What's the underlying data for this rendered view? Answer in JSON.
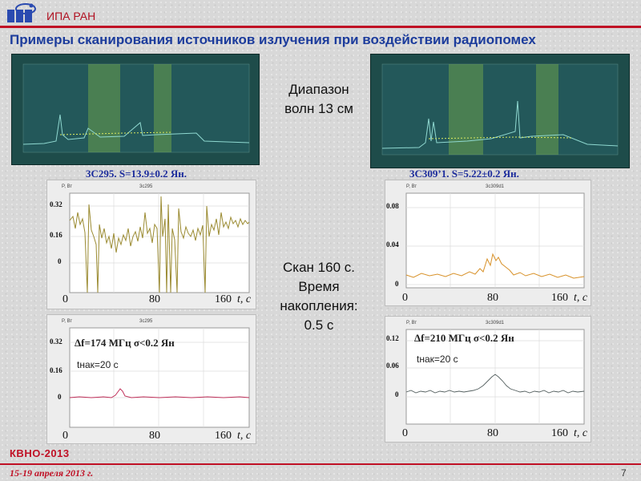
{
  "header": {
    "org": "ИПА РАН",
    "title": "Примеры сканирования источников излучения при воздействии радиопомех"
  },
  "center": {
    "range_line1": "Диапазон",
    "range_line2": "волн 13 см",
    "scan_line1": "Скан 160 с.",
    "scan_line2": "Время",
    "scan_line3": "накопления:",
    "scan_line4": "0.5 с"
  },
  "sources": {
    "left": {
      "caption": "3C295. S=13.9±0.2 Ян.",
      "x_ticks": [
        "0",
        "80",
        "160"
      ],
      "y_ticks_top": [
        "0.32",
        "0.16",
        "0"
      ],
      "y_ticks_bottom": [
        "0.32",
        "0.16",
        "0"
      ]
    },
    "right": {
      "caption": "3C309’1. S=5.22±0.2 Ян.",
      "x_ticks": [
        "0",
        "80",
        "160"
      ],
      "y_ticks_top": [
        "0.08",
        "0.04",
        "0"
      ],
      "y_ticks_bottom": [
        "0.12",
        "0.06",
        "0"
      ]
    }
  },
  "axis": {
    "x_unit": "t, c"
  },
  "annotations": {
    "left": {
      "df": "Δf=174 МГц σ<0.2 Ян",
      "tnak": "tнак=20 с"
    },
    "right": {
      "df": "Δf=210 МГц σ<0.2 Ян",
      "tnak": "tнак=20 с"
    }
  },
  "footer": {
    "conf": "КВНО-2013",
    "dates": "15-19 апреля 2013 г.",
    "page": "7"
  },
  "colors": {
    "accent_red": "#c01025",
    "title_blue": "#1c3c9c",
    "spectrum_bg": "#1e4c4a",
    "trace_olive": "#9a8a30",
    "trace_orange": "#d8922a",
    "trace_red": "#c0305a",
    "trace_gray": "#556060"
  }
}
